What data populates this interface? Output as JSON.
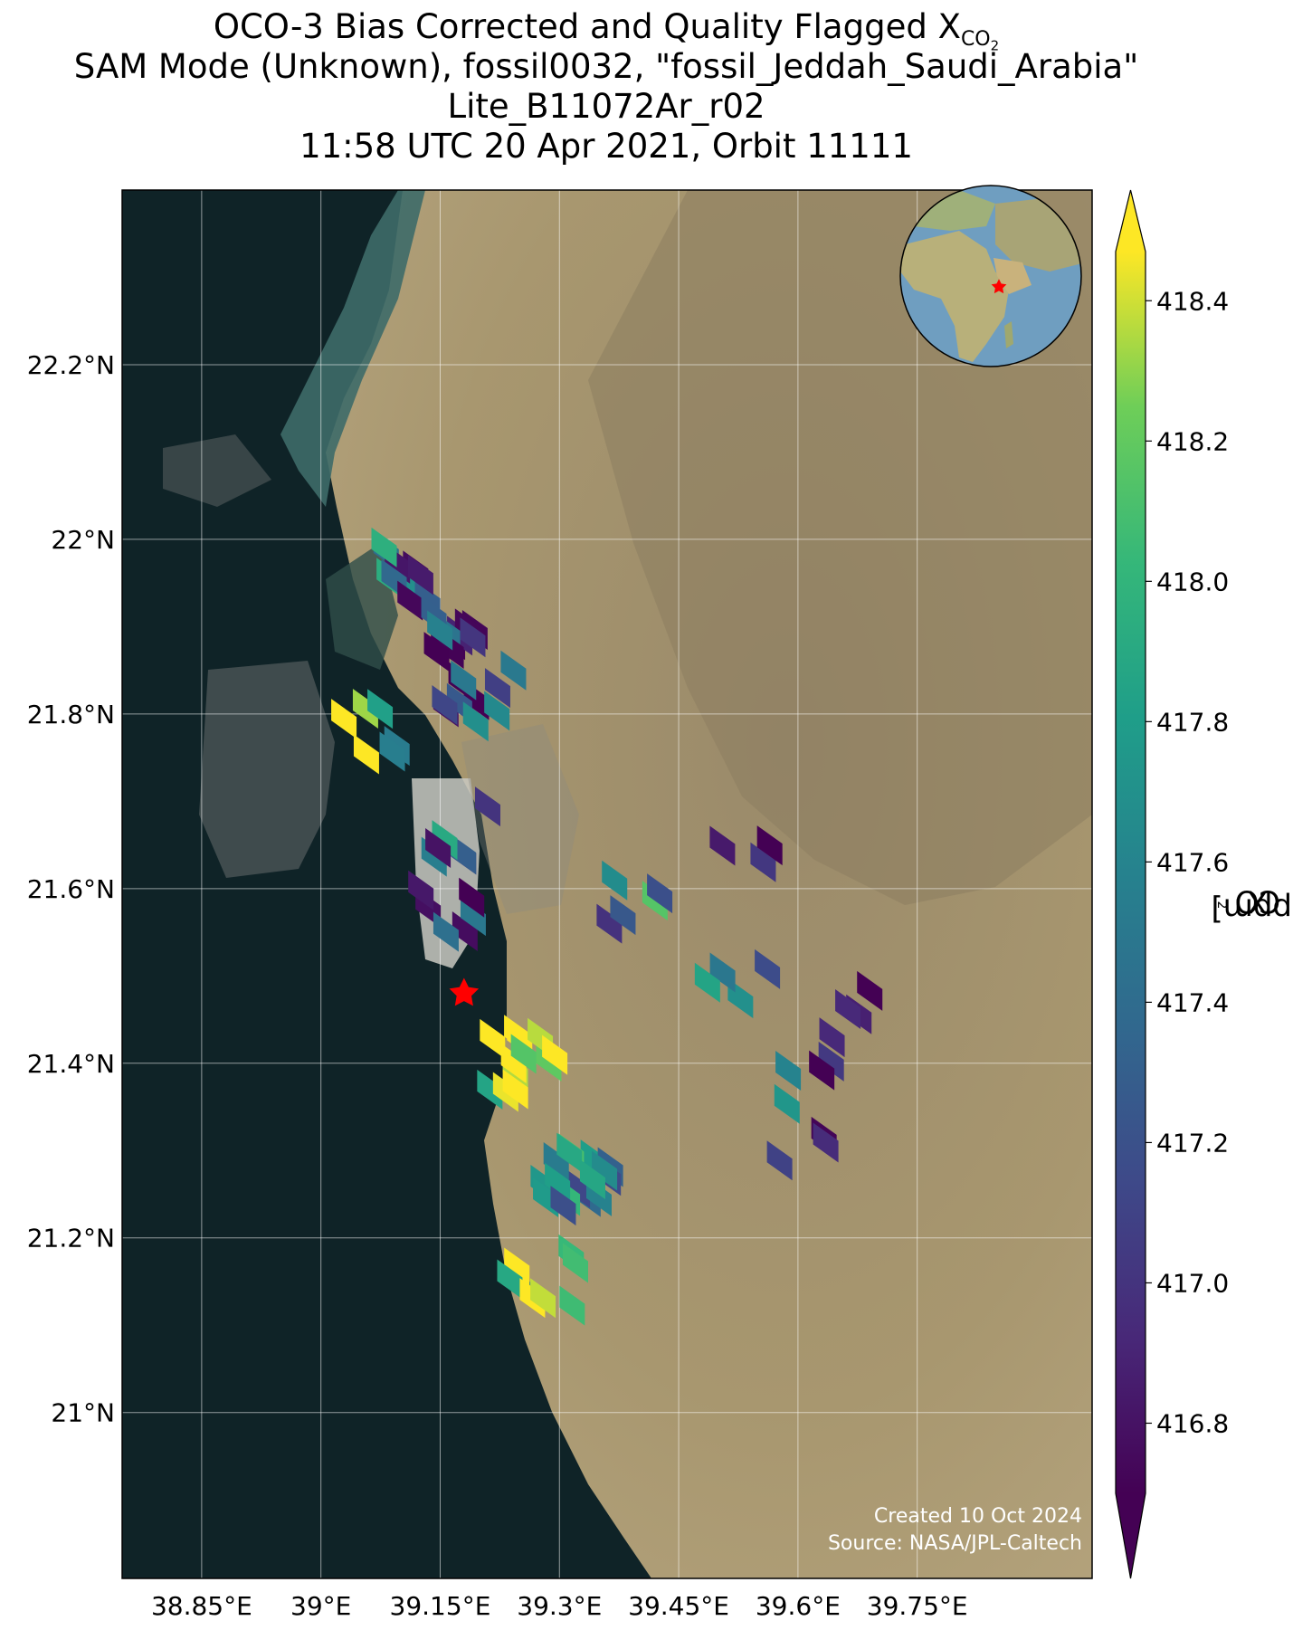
{
  "title": {
    "line1": "OCO-3 Bias Corrected and Quality Flagged X",
    "line1_sub": "CO",
    "line1_subsub": "2",
    "line2": "SAM Mode (Unknown), fossil0032, \"fossil_Jeddah_Saudi_Arabia\"",
    "line3": "Lite_B11072Ar_r02",
    "line4": "11:58 UTC 20 Apr 2021, Orbit 11111"
  },
  "credit": {
    "line1": "Created 10 Oct 2024",
    "line2": "Source: NASA/JPL-Caltech"
  },
  "map": {
    "lon_range": [
      38.75,
      39.97
    ],
    "lat_range": [
      20.81,
      22.4
    ],
    "lon_ticks": [
      38.85,
      39.0,
      39.15,
      39.3,
      39.45,
      39.6,
      39.75
    ],
    "lon_tick_labels": [
      "38.85°E",
      "39°E",
      "39.15°E",
      "39.3°E",
      "39.45°E",
      "39.6°E",
      "39.75°E"
    ],
    "lat_ticks": [
      21.0,
      21.2,
      21.4,
      21.6,
      21.8,
      22.0,
      22.2
    ],
    "lat_tick_labels": [
      "21°N",
      "21.2°N",
      "21.4°N",
      "21.6°N",
      "21.8°N",
      "22°N",
      "22.2°N"
    ],
    "target_marker": {
      "lon": 39.18,
      "lat": 21.48,
      "color": "#ff0000"
    },
    "grid": true,
    "colors": {
      "sea": "#0e2226",
      "desert": "#a89775",
      "coast_shallow": "#3e6b69",
      "city": "#c9c9c2"
    }
  },
  "colorbar": {
    "label": "X",
    "label_sub": "CO",
    "label_subsub": "2",
    "label_units": " [ppm]",
    "vmin": 416.7,
    "vmax": 418.47,
    "ticks": [
      416.8,
      417.0,
      417.2,
      417.4,
      417.6,
      417.8,
      418.0,
      418.2,
      418.4
    ],
    "tick_labels": [
      "416.8",
      "417.0",
      "417.2",
      "417.4",
      "417.6",
      "417.8",
      "418.0",
      "418.2",
      "418.4"
    ],
    "colormap": "viridis",
    "extend": "both"
  },
  "chart_data": {
    "type": "heatmap",
    "description_units": "XCO2 ppm soundings at lon/lat",
    "clusters": [
      {
        "lon": 39.12,
        "lat": 21.96,
        "n": 10,
        "mean": 417.3
      },
      {
        "lon": 39.15,
        "lat": 21.9,
        "n": 12,
        "mean": 417.1
      },
      {
        "lon": 39.2,
        "lat": 21.82,
        "n": 10,
        "mean": 417.0
      },
      {
        "lon": 39.06,
        "lat": 21.78,
        "n": 6,
        "mean": 418.2
      },
      {
        "lon": 39.18,
        "lat": 21.67,
        "n": 6,
        "mean": 417.5
      },
      {
        "lon": 39.17,
        "lat": 21.58,
        "n": 6,
        "mean": 416.9
      },
      {
        "lon": 39.25,
        "lat": 21.4,
        "n": 12,
        "mean": 418.3
      },
      {
        "lon": 39.32,
        "lat": 21.27,
        "n": 16,
        "mean": 417.8
      },
      {
        "lon": 39.28,
        "lat": 21.15,
        "n": 8,
        "mean": 418.2
      },
      {
        "lon": 39.4,
        "lat": 21.58,
        "n": 5,
        "mean": 417.5
      },
      {
        "lon": 39.52,
        "lat": 21.5,
        "n": 4,
        "mean": 417.4
      },
      {
        "lon": 39.62,
        "lat": 21.4,
        "n": 4,
        "mean": 417.0
      },
      {
        "lon": 39.6,
        "lat": 21.32,
        "n": 4,
        "mean": 417.3
      },
      {
        "lon": 39.68,
        "lat": 21.48,
        "n": 3,
        "mean": 416.9
      },
      {
        "lon": 39.55,
        "lat": 21.65,
        "n": 3,
        "mean": 416.9
      }
    ]
  }
}
